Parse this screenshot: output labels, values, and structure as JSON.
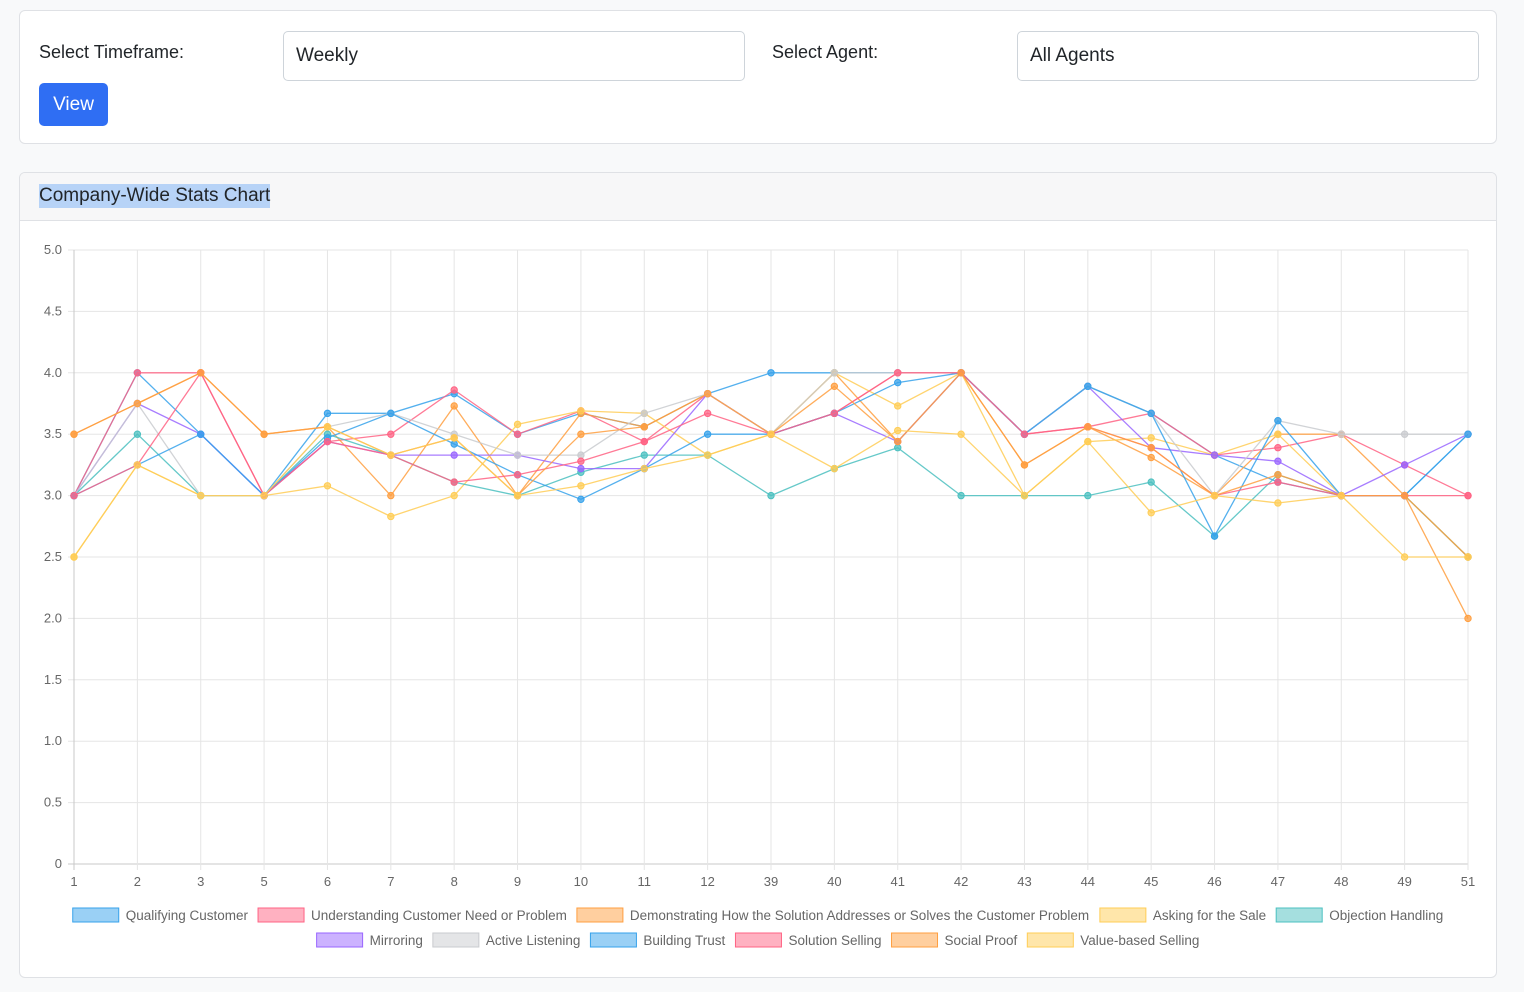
{
  "filters": {
    "timeframe_label": "Select Timeframe:",
    "timeframe_value": "Weekly",
    "agent_label": "Select Agent:",
    "agent_value": "All Agents",
    "view_button": "View"
  },
  "chart_card": {
    "title": "Company-Wide Stats Chart"
  },
  "chart_data": {
    "type": "line",
    "categories": [
      "1",
      "2",
      "3",
      "5",
      "6",
      "7",
      "8",
      "9",
      "10",
      "11",
      "12",
      "39",
      "40",
      "41",
      "42",
      "43",
      "44",
      "45",
      "46",
      "47",
      "48",
      "49",
      "51"
    ],
    "ylim": [
      0,
      5
    ],
    "yticks": [
      "0",
      "0.5",
      "1.0",
      "1.5",
      "2.0",
      "2.5",
      "3.0",
      "3.5",
      "4.0",
      "4.5",
      "5.0"
    ],
    "grid": true,
    "legend_position": "bottom",
    "series": [
      {
        "name": "Qualifying Customer",
        "color": "#36a2eb",
        "values": [
          3.0,
          4.0,
          3.5,
          3.0,
          3.67,
          3.67,
          3.83,
          3.5,
          3.67,
          3.56,
          3.83,
          4.0,
          4.0,
          4.0,
          4.0,
          3.5,
          3.89,
          3.67,
          3.33,
          3.11,
          3.0,
          3.0,
          3.5
        ]
      },
      {
        "name": "Understanding Customer Need or Problem",
        "color": "#ff6384",
        "values": [
          3.0,
          4.0,
          4.0,
          3.0,
          3.44,
          3.5,
          3.86,
          3.5,
          3.69,
          3.44,
          3.83,
          3.5,
          3.67,
          4.0,
          4.0,
          3.5,
          3.56,
          3.67,
          3.33,
          3.39,
          3.5,
          3.25,
          3.0
        ]
      },
      {
        "name": "Demonstrating How the Solution Addresses or Solves the Customer Problem",
        "color": "#ff9f40",
        "values": [
          3.5,
          3.75,
          4.0,
          3.5,
          3.56,
          3.0,
          3.73,
          3.0,
          3.67,
          3.56,
          3.83,
          3.5,
          4.0,
          3.44,
          4.0,
          3.25,
          3.56,
          3.31,
          3.0,
          3.5,
          3.5,
          3.0,
          2.0
        ]
      },
      {
        "name": "Asking for the Sale",
        "color": "#ffcd56",
        "values": [
          2.5,
          3.25,
          3.0,
          3.0,
          3.08,
          2.83,
          3.0,
          3.58,
          3.69,
          3.67,
          3.33,
          3.5,
          4.0,
          3.73,
          4.0,
          3.0,
          3.44,
          3.47,
          3.33,
          3.5,
          3.0,
          3.0,
          2.5
        ]
      },
      {
        "name": "Objection Handling",
        "color": "#4bc0c0",
        "values": [
          3.0,
          3.5,
          3.0,
          3.0,
          3.5,
          3.33,
          3.11,
          3.0,
          3.19,
          3.33,
          3.33,
          3.0,
          3.22,
          3.39,
          3.0,
          3.0,
          3.0,
          3.11,
          2.67,
          3.17,
          3.0,
          3.0,
          2.5
        ]
      },
      {
        "name": "Mirroring",
        "color": "#9966ff",
        "values": [
          3.0,
          3.75,
          3.5,
          3.0,
          3.44,
          3.33,
          3.33,
          3.33,
          3.22,
          3.22,
          3.83,
          3.5,
          3.67,
          3.44,
          4.0,
          3.5,
          3.89,
          3.39,
          3.33,
          3.28,
          3.0,
          3.25,
          3.5
        ]
      },
      {
        "name": "Active Listening",
        "color": "#c9cbcf",
        "values": [
          3.0,
          3.75,
          3.0,
          3.0,
          3.56,
          3.67,
          3.5,
          3.33,
          3.33,
          3.67,
          3.83,
          3.5,
          4.0,
          4.0,
          4.0,
          3.5,
          3.89,
          3.67,
          3.0,
          3.61,
          3.5,
          3.5,
          3.5
        ]
      },
      {
        "name": "Building Trust",
        "color": "#36a2eb",
        "values": [
          3.0,
          3.25,
          3.5,
          3.0,
          3.47,
          3.67,
          3.42,
          3.17,
          2.97,
          3.22,
          3.5,
          3.5,
          3.67,
          3.92,
          4.0,
          3.5,
          3.89,
          3.67,
          2.67,
          3.61,
          3.0,
          3.0,
          3.5
        ]
      },
      {
        "name": "Solution Selling",
        "color": "#ff6384",
        "values": [
          3.0,
          3.25,
          4.0,
          3.0,
          3.44,
          3.33,
          3.11,
          3.17,
          3.28,
          3.44,
          3.67,
          3.5,
          3.67,
          4.0,
          4.0,
          3.5,
          3.56,
          3.39,
          3.0,
          3.11,
          3.0,
          3.0,
          3.0
        ]
      },
      {
        "name": "Social Proof",
        "color": "#ff9f40",
        "values": [
          3.5,
          3.75,
          4.0,
          3.5,
          3.56,
          3.33,
          3.47,
          3.0,
          3.5,
          3.56,
          3.83,
          3.5,
          3.89,
          3.44,
          4.0,
          3.25,
          3.56,
          3.39,
          3.0,
          3.17,
          3.0,
          3.0,
          2.5
        ]
      },
      {
        "name": "Value-based Selling",
        "color": "#ffcd56",
        "values": [
          2.5,
          3.25,
          3.0,
          3.0,
          3.56,
          3.33,
          3.47,
          3.0,
          3.08,
          3.22,
          3.33,
          3.5,
          3.22,
          3.53,
          3.5,
          3.0,
          3.44,
          2.86,
          3.0,
          2.94,
          3.0,
          2.5,
          2.5
        ]
      }
    ]
  }
}
